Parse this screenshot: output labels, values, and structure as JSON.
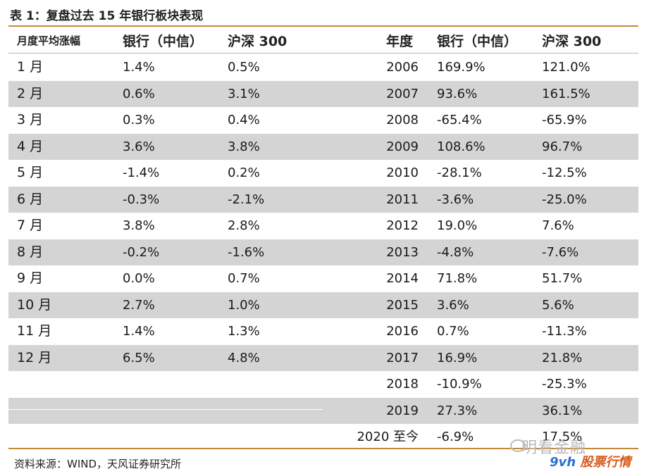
{
  "title": "表 1：复盘过去 15 年银行板块表现",
  "headers": {
    "left_label": "月度平均涨幅",
    "left_bank": "银行（中信）",
    "left_hs": "沪深 300",
    "right_year": "年度",
    "right_bank": "银行（中信）",
    "right_hs": "沪深 300"
  },
  "monthly": [
    {
      "month": "1 月",
      "bank": "1.4%",
      "hs300": "0.5%"
    },
    {
      "month": "2 月",
      "bank": "0.6%",
      "hs300": "3.1%"
    },
    {
      "month": "3 月",
      "bank": "0.3%",
      "hs300": "0.4%"
    },
    {
      "month": "4 月",
      "bank": "3.6%",
      "hs300": "3.8%"
    },
    {
      "month": "5 月",
      "bank": "-1.4%",
      "hs300": "0.2%"
    },
    {
      "month": "6 月",
      "bank": "-0.3%",
      "hs300": "-2.1%"
    },
    {
      "month": "7 月",
      "bank": "3.8%",
      "hs300": "2.8%"
    },
    {
      "month": "8 月",
      "bank": "-0.2%",
      "hs300": "-1.6%"
    },
    {
      "month": "9 月",
      "bank": "0.0%",
      "hs300": "0.7%"
    },
    {
      "month": "10 月",
      "bank": "2.7%",
      "hs300": "1.0%"
    },
    {
      "month": "11 月",
      "bank": "1.4%",
      "hs300": "1.3%"
    },
    {
      "month": "12 月",
      "bank": "6.5%",
      "hs300": "4.8%"
    }
  ],
  "annual": [
    {
      "year": "2006",
      "bank": "169.9%",
      "hs300": "121.0%"
    },
    {
      "year": "2007",
      "bank": "93.6%",
      "hs300": "161.5%"
    },
    {
      "year": "2008",
      "bank": "-65.4%",
      "hs300": "-65.9%"
    },
    {
      "year": "2009",
      "bank": "108.6%",
      "hs300": "96.7%"
    },
    {
      "year": "2010",
      "bank": "-28.1%",
      "hs300": "-12.5%"
    },
    {
      "year": "2011",
      "bank": "-3.6%",
      "hs300": "-25.0%"
    },
    {
      "year": "2012",
      "bank": "19.0%",
      "hs300": "7.6%"
    },
    {
      "year": "2013",
      "bank": "-4.8%",
      "hs300": "-7.6%"
    },
    {
      "year": "2014",
      "bank": "71.8%",
      "hs300": "51.7%"
    },
    {
      "year": "2015",
      "bank": "3.6%",
      "hs300": "5.6%"
    },
    {
      "year": "2016",
      "bank": "0.7%",
      "hs300": "-11.3%"
    },
    {
      "year": "2017",
      "bank": "16.9%",
      "hs300": "21.8%"
    },
    {
      "year": "2018",
      "bank": "-10.9%",
      "hs300": "-25.3%"
    },
    {
      "year": "2019",
      "bank": "27.3%",
      "hs300": "36.1%"
    },
    {
      "year": "2020 至今",
      "bank": "-6.9%",
      "hs300": "17.5%"
    }
  ],
  "source": "资料来源：WIND，天风证券研究所",
  "watermark": {
    "line1": "明看金融",
    "logo_a": "9vh",
    "logo_b": "股票行情"
  },
  "colors": {
    "accent": "#c48a3c",
    "shade": "#d4d4d4"
  }
}
